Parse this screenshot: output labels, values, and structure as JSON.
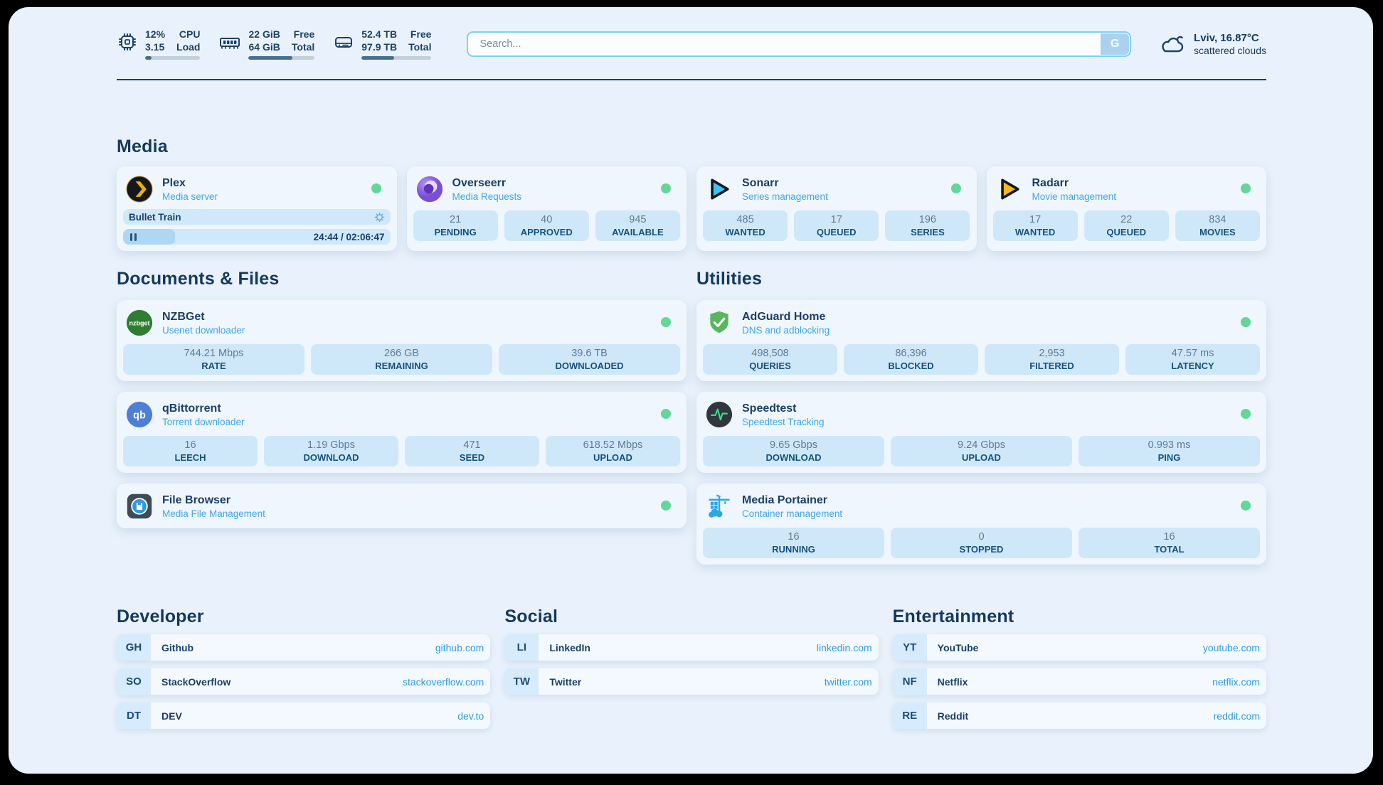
{
  "header": {
    "cpu": {
      "line1_value": "12%",
      "line1_label": "CPU",
      "line2_value": "3.15",
      "line2_label": "Load",
      "progress_pct": 12
    },
    "memory": {
      "line1_value": "22 GiB",
      "line1_label": "Free",
      "line2_value": "64 GiB",
      "line2_label": "Total",
      "progress_pct": 66
    },
    "disk": {
      "line1_value": "52.4 TB",
      "line1_label": "Free",
      "line2_value": "97.9 TB",
      "line2_label": "Total",
      "progress_pct": 47
    },
    "search": {
      "placeholder": "Search...",
      "button_label": "G"
    },
    "weather": {
      "location": "Lviv, 16.87°C",
      "condition": "scattered clouds"
    }
  },
  "media": {
    "title": "Media",
    "plex": {
      "name": "Plex",
      "subtitle": "Media server",
      "status": "online",
      "now_playing": "Bullet Train",
      "time": "24:44 / 02:06:47",
      "progress_pct": 19.5
    },
    "overseerr": {
      "name": "Overseerr",
      "subtitle": "Media Requests",
      "status": "online",
      "stats": [
        {
          "value": "21",
          "label": "PENDING"
        },
        {
          "value": "40",
          "label": "APPROVED"
        },
        {
          "value": "945",
          "label": "AVAILABLE"
        }
      ]
    },
    "sonarr": {
      "name": "Sonarr",
      "subtitle": "Series management",
      "status": "online",
      "stats": [
        {
          "value": "485",
          "label": "WANTED"
        },
        {
          "value": "17",
          "label": "QUEUED"
        },
        {
          "value": "196",
          "label": "SERIES"
        }
      ]
    },
    "radarr": {
      "name": "Radarr",
      "subtitle": "Movie management",
      "status": "online",
      "stats": [
        {
          "value": "17",
          "label": "WANTED"
        },
        {
          "value": "22",
          "label": "QUEUED"
        },
        {
          "value": "834",
          "label": "MOVIES"
        }
      ]
    }
  },
  "documents": {
    "title": "Documents & Files",
    "nzbget": {
      "name": "NZBGet",
      "subtitle": "Usenet downloader",
      "status": "online",
      "stats": [
        {
          "value": "744.21 Mbps",
          "label": "RATE"
        },
        {
          "value": "266 GB",
          "label": "REMAINING"
        },
        {
          "value": "39.6 TB",
          "label": "DOWNLOADED"
        }
      ]
    },
    "qbittorrent": {
      "name": "qBittorrent",
      "subtitle": "Torrent downloader",
      "status": "online",
      "stats": [
        {
          "value": "16",
          "label": "LEECH"
        },
        {
          "value": "1.19 Gbps",
          "label": "DOWNLOAD"
        },
        {
          "value": "471",
          "label": "SEED"
        },
        {
          "value": "618.52 Mbps",
          "label": "UPLOAD"
        }
      ]
    },
    "filebrowser": {
      "name": "File Browser",
      "subtitle": "Media File Management",
      "status": "online"
    }
  },
  "utilities": {
    "title": "Utilities",
    "adguard": {
      "name": "AdGuard Home",
      "subtitle": "DNS and adblocking",
      "status": "online",
      "stats": [
        {
          "value": "498,508",
          "label": "QUERIES"
        },
        {
          "value": "86,396",
          "label": "BLOCKED"
        },
        {
          "value": "2,953",
          "label": "FILTERED"
        },
        {
          "value": "47.57 ms",
          "label": "LATENCY"
        }
      ]
    },
    "speedtest": {
      "name": "Speedtest",
      "subtitle": "Speedtest Tracking",
      "status": "online",
      "stats": [
        {
          "value": "9.65 Gbps",
          "label": "DOWNLOAD"
        },
        {
          "value": "9.24 Gbps",
          "label": "UPLOAD"
        },
        {
          "value": "0.993 ms",
          "label": "PING"
        }
      ]
    },
    "portainer": {
      "name": "Media Portainer",
      "subtitle": "Container management",
      "status": "online",
      "stats": [
        {
          "value": "16",
          "label": "RUNNING"
        },
        {
          "value": "0",
          "label": "STOPPED"
        },
        {
          "value": "16",
          "label": "TOTAL"
        }
      ]
    }
  },
  "bookmarks": {
    "developer": {
      "title": "Developer",
      "items": [
        {
          "abbr": "GH",
          "name": "Github",
          "url": "github.com"
        },
        {
          "abbr": "SO",
          "name": "StackOverflow",
          "url": "stackoverflow.com"
        },
        {
          "abbr": "DT",
          "name": "DEV",
          "url": "dev.to"
        }
      ]
    },
    "social": {
      "title": "Social",
      "items": [
        {
          "abbr": "LI",
          "name": "LinkedIn",
          "url": "linkedin.com"
        },
        {
          "abbr": "TW",
          "name": "Twitter",
          "url": "twitter.com"
        }
      ]
    },
    "entertainment": {
      "title": "Entertainment",
      "items": [
        {
          "abbr": "YT",
          "name": "YouTube",
          "url": "youtube.com"
        },
        {
          "abbr": "NF",
          "name": "Netflix",
          "url": "netflix.com"
        },
        {
          "abbr": "RE",
          "name": "Reddit",
          "url": "reddit.com"
        }
      ]
    }
  },
  "icons": {
    "qbittorrent_label": "qb",
    "nzbget_label": "nzbget"
  },
  "colors": {
    "status_online": "#62d796",
    "accent_blue": "#41a5ea",
    "link_blue": "#2f9be2",
    "navy": "#1b3f66"
  }
}
